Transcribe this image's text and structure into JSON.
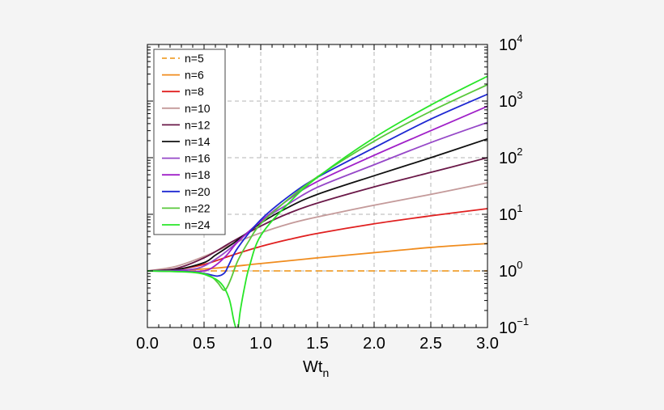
{
  "chart_data": {
    "type": "line",
    "xlabel": {
      "main": "Wt",
      "sub": "n"
    },
    "ylabel": "",
    "title": "",
    "xlim": [
      0,
      3
    ],
    "ylim": [
      0.1,
      10000
    ],
    "yscale": "log",
    "grid": true,
    "legend_position": "top-left",
    "x_ticks": [
      {
        "value": 0,
        "label": "0.0"
      },
      {
        "value": 0.5,
        "label": "0.5"
      },
      {
        "value": 1,
        "label": "1.0"
      },
      {
        "value": 1.5,
        "label": "1.5"
      },
      {
        "value": 2,
        "label": "2.0"
      },
      {
        "value": 2.5,
        "label": "2.5"
      },
      {
        "value": 3,
        "label": "3.0"
      }
    ],
    "y_ticks": [
      {
        "value": 0.1,
        "base": "10",
        "exp": "−1"
      },
      {
        "value": 1,
        "base": "10",
        "exp": "0"
      },
      {
        "value": 10,
        "base": "10",
        "exp": "1"
      },
      {
        "value": 100,
        "base": "10",
        "exp": "2"
      },
      {
        "value": 1000,
        "base": "10",
        "exp": "3"
      },
      {
        "value": 10000,
        "base": "10",
        "exp": "4"
      }
    ],
    "series": [
      {
        "name": "n=5",
        "color": "#f0a030",
        "dash": true,
        "x": [
          0,
          3
        ],
        "y": [
          1,
          1
        ]
      },
      {
        "name": "n=6",
        "color": "#f08c1e",
        "dash": false,
        "x": [
          0,
          0.5,
          1,
          1.5,
          2,
          2.5,
          3
        ],
        "y": [
          1,
          1.08,
          1.35,
          1.7,
          2.1,
          2.6,
          3.05
        ]
      },
      {
        "name": "n=8",
        "color": "#e02020",
        "dash": false,
        "x": [
          0,
          0.25,
          0.5,
          0.75,
          1,
          1.25,
          1.5,
          2,
          2.5,
          3
        ],
        "y": [
          1,
          1.06,
          1.3,
          1.9,
          2.7,
          3.6,
          4.6,
          6.8,
          9.4,
          12.6
        ]
      },
      {
        "name": "n=10",
        "color": "#c49a9a",
        "dash": false,
        "x": [
          0,
          0.25,
          0.5,
          0.75,
          1,
          1.25,
          1.5,
          2,
          2.5,
          3
        ],
        "y": [
          1,
          1.2,
          1.8,
          3.0,
          4.7,
          6.8,
          9.0,
          14.5,
          22.5,
          36
        ]
      },
      {
        "name": "n=12",
        "color": "#6a1848",
        "dash": false,
        "x": [
          0,
          0.25,
          0.5,
          0.75,
          1,
          1.25,
          1.5,
          2,
          2.5,
          3
        ],
        "y": [
          1,
          1.1,
          1.7,
          3.3,
          6.2,
          10.5,
          15.8,
          30.5,
          55,
          100
        ]
      },
      {
        "name": "n=14",
        "color": "#101010",
        "dash": false,
        "x": [
          0,
          0.25,
          0.5,
          0.6,
          0.75,
          1,
          1.25,
          1.5,
          2,
          2.5,
          3
        ],
        "y": [
          1,
          1.05,
          1.4,
          1.9,
          3.0,
          7.0,
          13.5,
          22.5,
          48,
          100,
          215
        ]
      },
      {
        "name": "n=16",
        "color": "#9648c8",
        "dash": false,
        "x": [
          0,
          0.25,
          0.45,
          0.6,
          0.75,
          1,
          1.25,
          1.5,
          2,
          2.5,
          3
        ],
        "y": [
          1,
          1.02,
          1.12,
          1.6,
          2.7,
          7.5,
          15.5,
          30,
          75,
          185,
          420
        ]
      },
      {
        "name": "n=18",
        "color": "#a020c8",
        "dash": false,
        "x": [
          0,
          0.3,
          0.5,
          0.6,
          0.7,
          0.8,
          1,
          1.25,
          1.5,
          2,
          2.5,
          3
        ],
        "y": [
          1,
          0.99,
          1.0,
          1.25,
          1.9,
          3.3,
          7.5,
          18.5,
          38,
          110,
          300,
          810
        ]
      },
      {
        "name": "n=20",
        "color": "#1e28d2",
        "dash": false,
        "x": [
          0,
          0.4,
          0.55,
          0.62,
          0.68,
          0.72,
          0.8,
          1,
          1.25,
          1.5,
          2,
          2.5,
          3
        ],
        "y": [
          1,
          0.96,
          0.86,
          0.81,
          0.92,
          1.3,
          2.6,
          8.0,
          21,
          45,
          150,
          480,
          1320
        ]
      },
      {
        "name": "n=22",
        "color": "#5ac83c",
        "dash": false,
        "x": [
          0,
          0.4,
          0.55,
          0.62,
          0.67,
          0.7,
          0.74,
          0.8,
          0.9,
          1,
          1.25,
          1.5,
          2,
          2.5,
          3
        ],
        "y": [
          1,
          0.95,
          0.82,
          0.62,
          0.46,
          0.5,
          0.75,
          1.55,
          3.5,
          6.8,
          19,
          46,
          195,
          660,
          1950
        ]
      },
      {
        "name": "n=24",
        "color": "#28e628",
        "dash": false,
        "x": [
          0,
          0.4,
          0.55,
          0.65,
          0.72,
          0.76,
          0.78,
          0.8,
          0.82,
          0.86,
          0.9,
          1,
          1.25,
          1.5,
          2,
          2.5,
          3
        ],
        "y": [
          1,
          0.94,
          0.8,
          0.6,
          0.33,
          0.14,
          0.1,
          0.1,
          0.2,
          0.55,
          1.2,
          4.2,
          16,
          45,
          225,
          850,
          2750
        ]
      }
    ]
  }
}
